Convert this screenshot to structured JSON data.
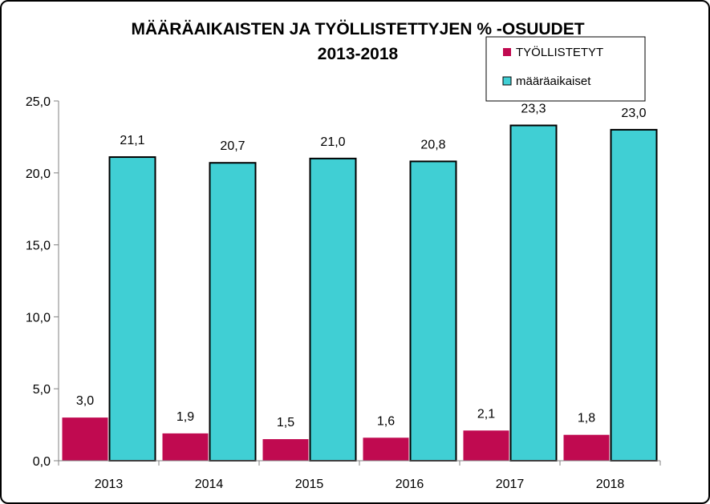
{
  "chart_data": {
    "type": "bar",
    "title": "MÄÄRÄAIKAISTEN JA TYÖLLISTETTYJEN % -OSUUDET",
    "subtitle": "2013-2018",
    "xlabel": "",
    "ylabel": "",
    "categories": [
      "2013",
      "2014",
      "2015",
      "2016",
      "2017",
      "2018"
    ],
    "series": [
      {
        "name": "TYÖLLISTETYT",
        "color": "#C00A50",
        "values": [
          3.0,
          1.9,
          1.5,
          1.6,
          2.1,
          1.8
        ],
        "labels": [
          "3,0",
          "1,9",
          "1,5",
          "1,6",
          "2,1",
          "1,8"
        ]
      },
      {
        "name": "määräaikaiset",
        "color": "#40CFD4",
        "values": [
          21.1,
          20.7,
          21.0,
          20.8,
          23.3,
          23.0
        ],
        "labels": [
          "21,1",
          "20,7",
          "21,0",
          "20,8",
          "23,3",
          "23,0"
        ]
      }
    ],
    "ylim": [
      0,
      25
    ],
    "yticks": [
      0,
      5,
      10,
      15,
      20,
      25
    ],
    "ytick_labels": [
      "0,0",
      "5,0",
      "10,0",
      "15,0",
      "20,0",
      "25,0"
    ],
    "grid": false,
    "legend_position": "top-right"
  }
}
